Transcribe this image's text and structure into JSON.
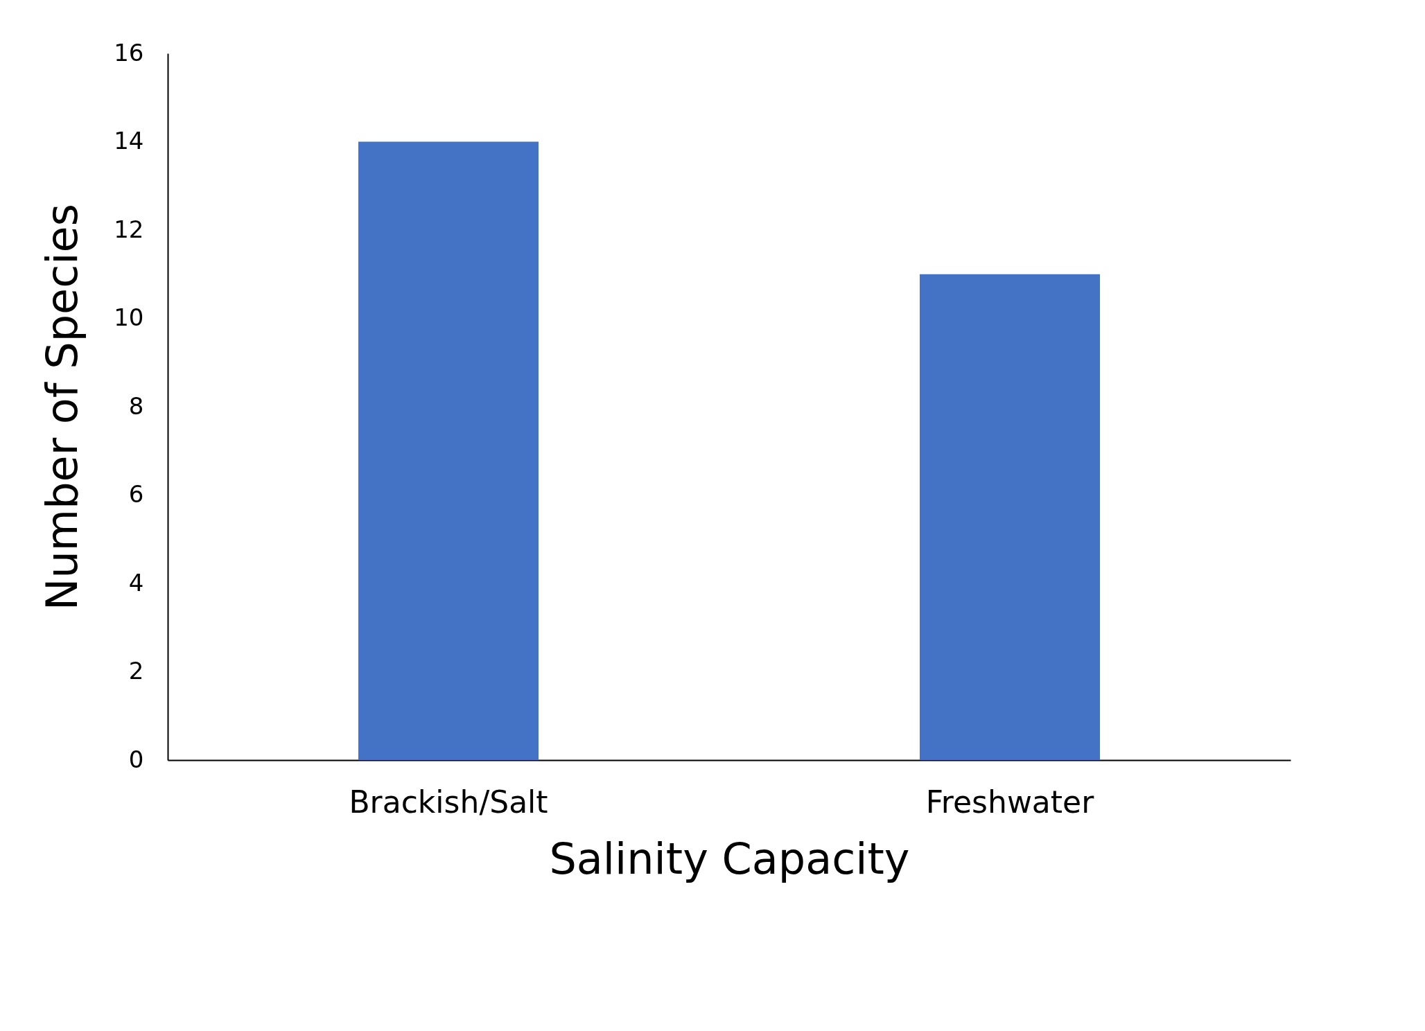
{
  "chart_data": {
    "type": "bar",
    "xlabel": "Salinity Capacity",
    "ylabel": "Number of Species",
    "categories": [
      "Brackish/Salt",
      "Freshwater"
    ],
    "values": [
      14,
      11
    ],
    "color": "#4472c4",
    "ylim": [
      0,
      16
    ],
    "yticks": [
      0,
      2,
      4,
      6,
      8,
      10,
      12,
      14,
      16
    ],
    "grid": false
  }
}
